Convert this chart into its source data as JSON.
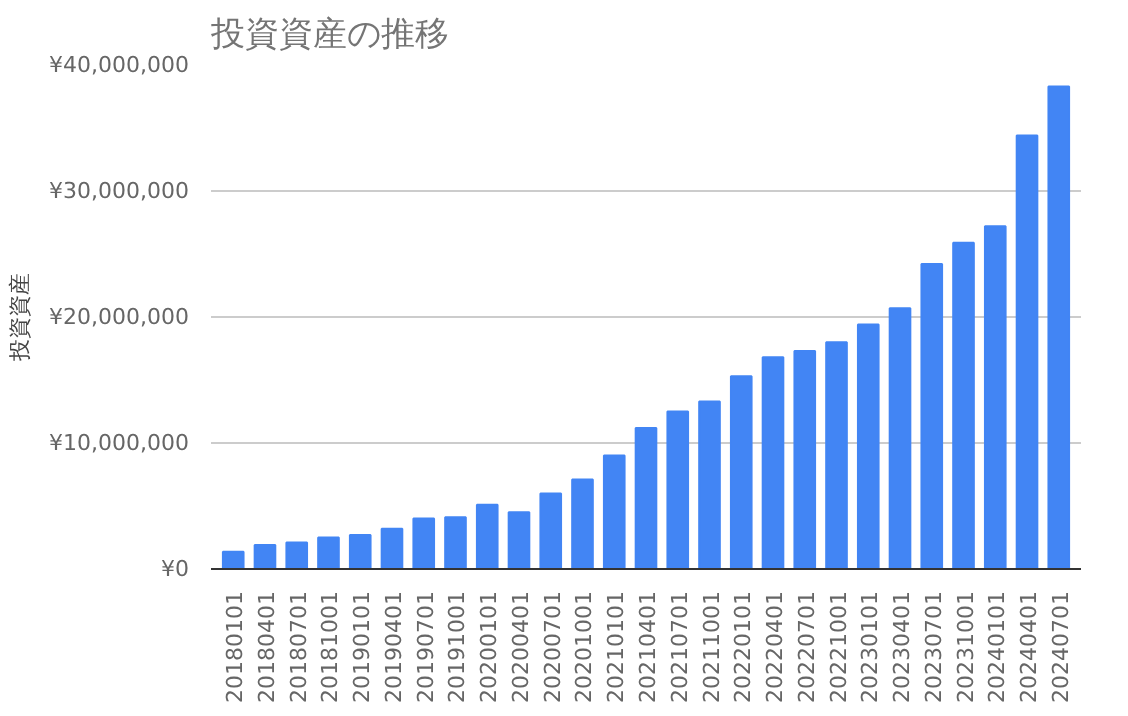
{
  "chart_data": {
    "type": "bar",
    "title": "投資資産の推移",
    "ylabel": "投資資産",
    "categories": [
      "20180101",
      "20180401",
      "20180701",
      "20181001",
      "20190101",
      "20190401",
      "20190701",
      "20191001",
      "20200101",
      "20200401",
      "20200701",
      "20201001",
      "20210101",
      "20210401",
      "20210701",
      "20211001",
      "20220101",
      "20220401",
      "20220701",
      "20221001",
      "20230101",
      "20230401",
      "20230701",
      "20231001",
      "20240101",
      "20240401",
      "20240701"
    ],
    "values": [
      1360000,
      1900000,
      2100000,
      2500000,
      2700000,
      3200000,
      4000000,
      4100000,
      5100000,
      4500000,
      6000000,
      7100000,
      9000000,
      11200000,
      12500000,
      13300000,
      15300000,
      16800000,
      17300000,
      18000000,
      19400000,
      20700000,
      24200000,
      25900000,
      27200000,
      34400000,
      38300000
    ],
    "color": "#4285f4",
    "ylim": [
      0,
      40000000
    ],
    "yticks": [
      {
        "value": 0,
        "label": "¥0"
      },
      {
        "value": 10000000,
        "label": "¥10,000,000"
      },
      {
        "value": 20000000,
        "label": "¥20,000,000"
      },
      {
        "value": 30000000,
        "label": "¥30,000,000"
      },
      {
        "value": 40000000,
        "label": "¥40,000,000"
      }
    ],
    "grid": "y"
  }
}
